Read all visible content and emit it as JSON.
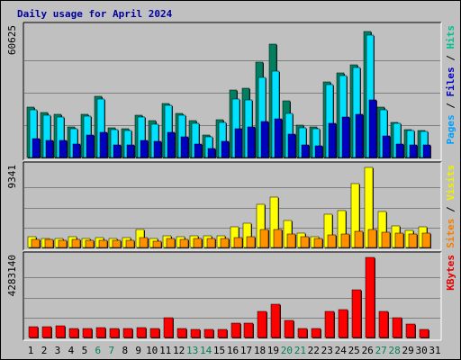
{
  "chart_data": {
    "type": "bar",
    "title": "Daily usage for April 2024",
    "categories": [
      "1",
      "2",
      "3",
      "4",
      "5",
      "6",
      "7",
      "8",
      "9",
      "10",
      "11",
      "12",
      "13",
      "14",
      "15",
      "16",
      "17",
      "18",
      "19",
      "20",
      "21",
      "22",
      "23",
      "24",
      "25",
      "26",
      "27",
      "28",
      "29",
      "30",
      "31"
    ],
    "weekend_days": [
      "6",
      "7",
      "13",
      "14",
      "20",
      "21",
      "27",
      "28"
    ],
    "panels": [
      {
        "name": "pages-files-hits",
        "max_label": "60625",
        "ymax": 60625,
        "legend": [
          {
            "text": "Pages",
            "color": "#00a0ff"
          },
          {
            "text": " / ",
            "color": "#000000"
          },
          {
            "text": "Files",
            "color": "#0000c0"
          },
          {
            "text": " / ",
            "color": "#000000"
          },
          {
            "text": "Hits",
            "color": "#00c090"
          }
        ],
        "series": [
          {
            "name": "Hits",
            "color": "#008060",
            "values": [
              23500,
              21200,
              20100,
              14400,
              20300,
              28700,
              14000,
              13600,
              19800,
              17100,
              25200,
              20800,
              17100,
              10400,
              17800,
              31600,
              32400,
              44600,
              53200,
              26400,
              15300,
              14500,
              35300,
              39700,
              43200,
              59000,
              23600,
              16400,
              13200,
              12600,
              0
            ]
          },
          {
            "name": "Files",
            "color": "#00e0ff",
            "values": [
              22300,
              19700,
              18900,
              13400,
              19500,
              27300,
              12900,
              12700,
              18800,
              15600,
              24600,
              19600,
              15900,
              9800,
              16600,
              27300,
              27000,
              37500,
              40300,
              20600,
              14000,
              13300,
              34000,
              38200,
              42000,
              57400,
              22300,
              15800,
              12700,
              12000,
              0
            ]
          },
          {
            "name": "Pages",
            "color": "#0000c0",
            "values": [
              9000,
              8200,
              8100,
              6200,
              10400,
              11700,
              5900,
              5800,
              8200,
              7400,
              11900,
              9500,
              6400,
              4000,
              7500,
              13300,
              14200,
              16800,
              18100,
              10900,
              6000,
              5600,
              16100,
              18900,
              20000,
              27000,
              10100,
              6500,
              6100,
              5700,
              0
            ]
          }
        ]
      },
      {
        "name": "visits-sites",
        "max_label": "9341",
        "ymax": 9341,
        "legend": [
          {
            "text": "Sites",
            "color": "#f08000"
          },
          {
            "text": " / ",
            "color": "#000000"
          },
          {
            "text": "Visits",
            "color": "#f0f000"
          }
        ],
        "series": [
          {
            "name": "Visits",
            "color": "#ffff00",
            "values": [
              1250,
              1050,
              1000,
              1250,
              1050,
              1150,
              1000,
              1150,
              2150,
              1000,
              1350,
              1300,
              1350,
              1400,
              1400,
              2450,
              2800,
              5000,
              5900,
              3100,
              1650,
              1250,
              3850,
              4350,
              7400,
              9341,
              4250,
              2500,
              1950,
              2400,
              0
            ]
          },
          {
            "name": "Sites",
            "color": "#ff9000",
            "values": [
              950,
              900,
              800,
              900,
              850,
              850,
              800,
              850,
              1200,
              750,
              1000,
              900,
              1050,
              1000,
              1050,
              1200,
              1300,
              2150,
              2050,
              1600,
              1250,
              1050,
              1500,
              1600,
              1900,
              2100,
              1800,
              1650,
              1550,
              1650,
              0
            ]
          }
        ]
      },
      {
        "name": "kbytes",
        "max_label": "4283140",
        "ymax": 4283140,
        "legend": [
          {
            "text": "KBytes",
            "color": "#e00000"
          }
        ],
        "series": [
          {
            "name": "KBytes",
            "color": "#ff0000",
            "values": [
              580000,
              580000,
              610000,
              480000,
              490000,
              520000,
              490000,
              490000,
              540000,
              460000,
              1050000,
              460000,
              440000,
              420000,
              420000,
              790000,
              770000,
              1380000,
              1770000,
              910000,
              470000,
              470000,
              1400000,
              1510000,
              2560000,
              4283140,
              1410000,
              1050000,
              740000,
              420000,
              0
            ]
          }
        ]
      }
    ]
  }
}
